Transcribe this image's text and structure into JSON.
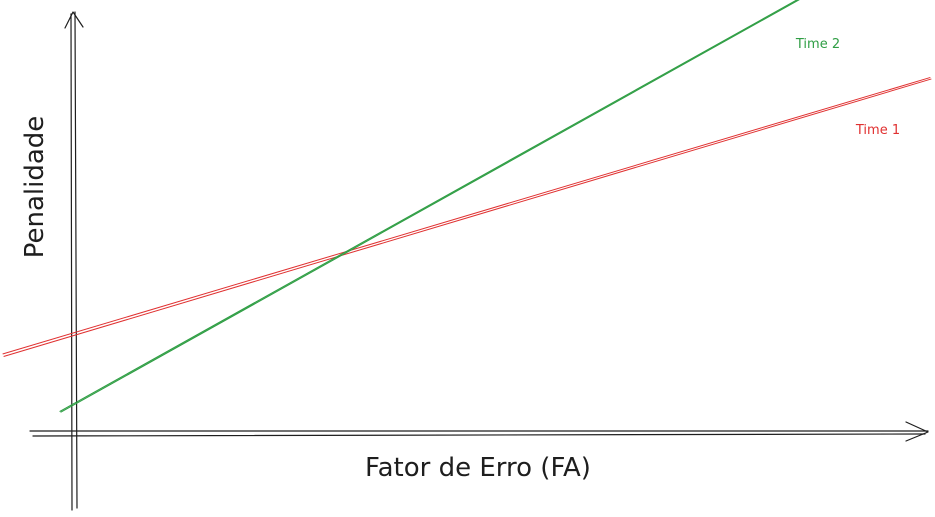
{
  "chart_data": {
    "type": "line",
    "title": "",
    "xlabel": "Fator de Erro (FA)",
    "ylabel": "Penalidade",
    "grid": false,
    "x": [
      0,
      1
    ],
    "series": [
      {
        "name": "Time 1",
        "color": "#e03131",
        "values": [
          0.37,
          1.0
        ]
      },
      {
        "name": "Time 2",
        "color": "#2f9e44",
        "values": [
          0.1,
          1.28
        ]
      }
    ],
    "annotations": [
      "Time 2",
      "Time 1"
    ]
  }
}
